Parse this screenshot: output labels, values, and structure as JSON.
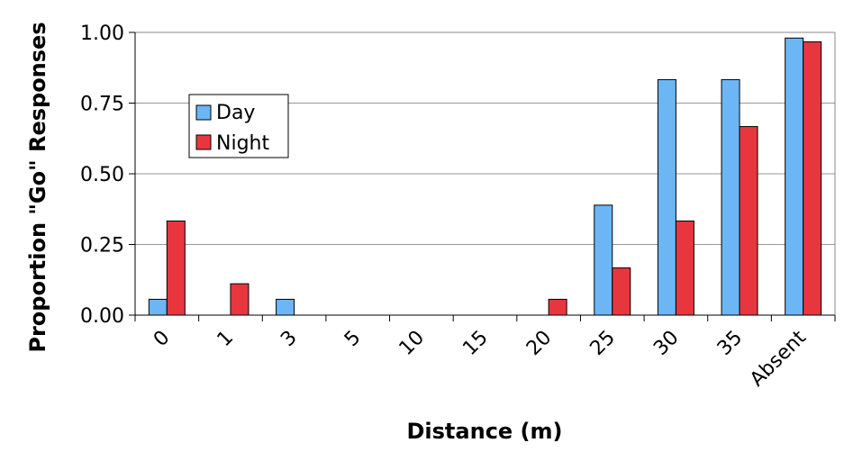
{
  "chart_data": {
    "type": "bar",
    "title": "",
    "xlabel": "Distance (m)",
    "ylabel": "Proportion \"Go\" Responses",
    "categories": [
      "0",
      "1",
      "3",
      "5",
      "10",
      "15",
      "20",
      "25",
      "30",
      "35",
      "Absent"
    ],
    "series": [
      {
        "name": "Day",
        "color": "#6cb6f5",
        "values": [
          0.056,
          0,
          0.056,
          0,
          0,
          0,
          0,
          0.389,
          0.833,
          0.833,
          0.98
        ]
      },
      {
        "name": "Night",
        "color": "#e8363f",
        "values": [
          0.333,
          0.111,
          0,
          0,
          0,
          0,
          0.056,
          0.167,
          0.333,
          0.667,
          0.967
        ]
      }
    ],
    "yticks": [
      "0.00",
      "0.25",
      "0.50",
      "0.75",
      "1.00"
    ],
    "ylim": [
      0,
      1
    ],
    "grid": true,
    "legend_position": "upper-left"
  }
}
